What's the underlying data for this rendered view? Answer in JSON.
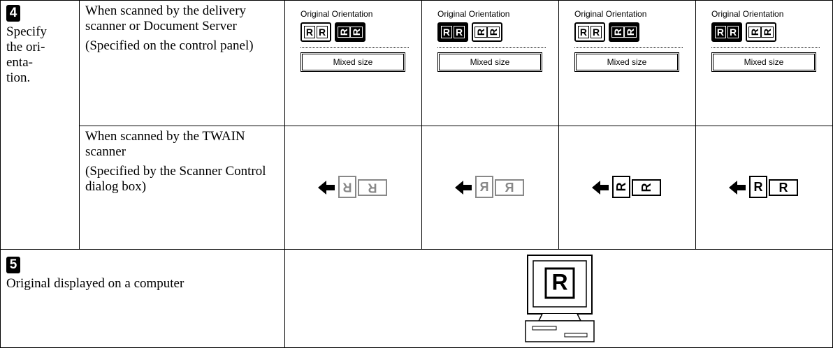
{
  "step4": {
    "number": "4",
    "text": "Specify the ori-enta-tion."
  },
  "rows": [
    {
      "condition": "When scanned by the delivery scanner or Document Server",
      "note": "(Specified on the control panel)",
      "panels": [
        {
          "label": "Original Orientation",
          "selected": 1,
          "button": "Mixed size"
        },
        {
          "label": "Original Orientation",
          "selected": 0,
          "button": "Mixed size"
        },
        {
          "label": "Original Orientation",
          "selected": 1,
          "button": "Mixed size"
        },
        {
          "label": "Original Orientation",
          "selected": 0,
          "button": "Mixed size"
        }
      ]
    },
    {
      "condition": "When scanned by the TWAIN scanner",
      "note": "(Specified by the Scanner Control dialog box)"
    }
  ],
  "step5": {
    "number": "5",
    "text": "Original displayed on a computer"
  },
  "letter": "R"
}
